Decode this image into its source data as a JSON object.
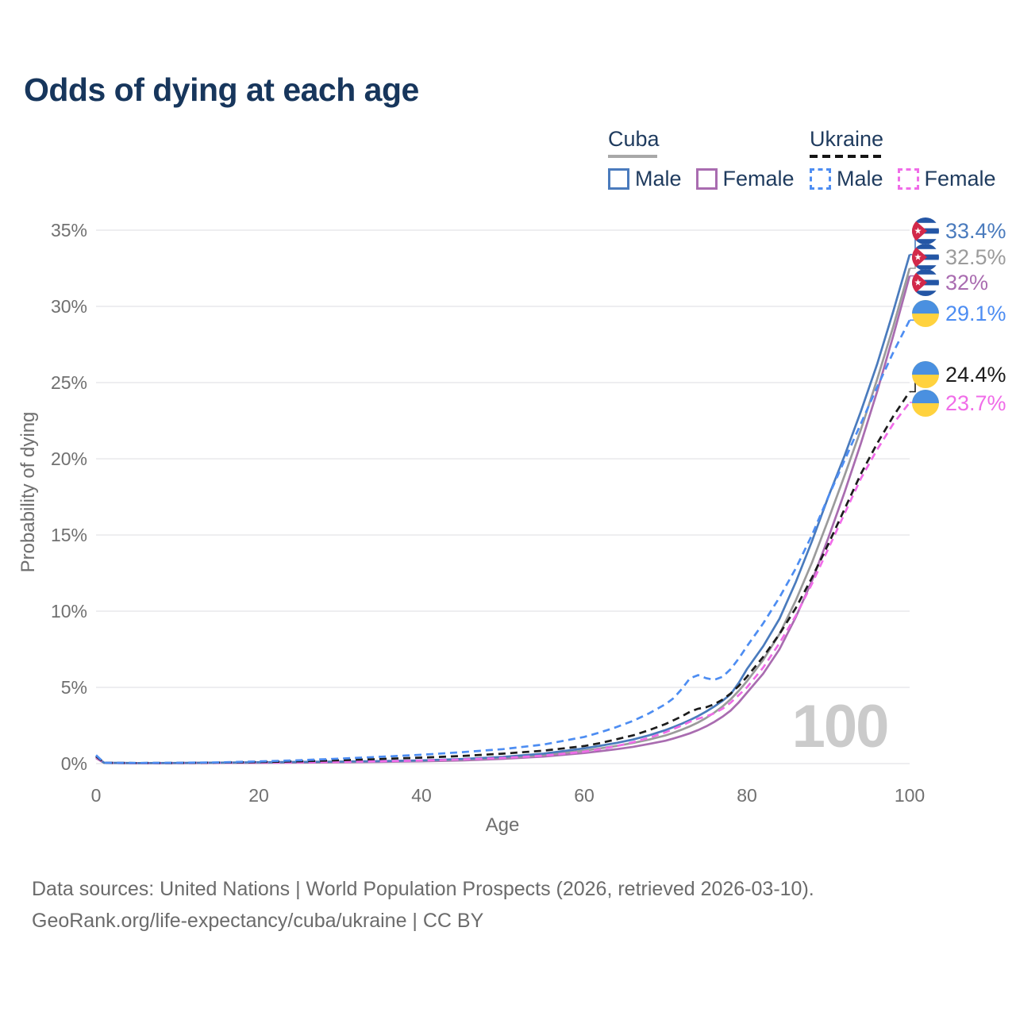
{
  "title": "Odds of dying at each age",
  "legend": {
    "groups": [
      {
        "label": "Cuba",
        "line_style": "solid",
        "items": [
          {
            "label": "Male",
            "color": "#4a7bbd"
          },
          {
            "label": "Female",
            "color": "#a96cb0"
          }
        ]
      },
      {
        "label": "Ukraine",
        "line_style": "dashed",
        "items": [
          {
            "label": "Male",
            "color": "#4d8df2"
          },
          {
            "label": "Female",
            "color": "#f06ce8"
          }
        ]
      }
    ]
  },
  "chart_data": {
    "type": "line",
    "title": "Odds of dying at each age",
    "xlabel": "Age",
    "ylabel": "Probability of dying",
    "xlim": [
      0,
      100
    ],
    "ylim": [
      0,
      35
    ],
    "grid": "horizontal",
    "legend_position": "top-right",
    "watermark": "100",
    "x_ticks": [
      {
        "value": 0,
        "label": "0"
      },
      {
        "value": 20,
        "label": "20"
      },
      {
        "value": 40,
        "label": "40"
      },
      {
        "value": 60,
        "label": "60"
      },
      {
        "value": 80,
        "label": "80"
      },
      {
        "value": 100,
        "label": "100"
      }
    ],
    "y_ticks": [
      {
        "value": 0,
        "label": "0%"
      },
      {
        "value": 5,
        "label": "5%"
      },
      {
        "value": 10,
        "label": "10%"
      },
      {
        "value": 15,
        "label": "15%"
      },
      {
        "value": 20,
        "label": "20%"
      },
      {
        "value": 25,
        "label": "25%"
      },
      {
        "value": 30,
        "label": "30%"
      },
      {
        "value": 35,
        "label": "35%"
      }
    ],
    "ages": [
      0,
      1,
      5,
      10,
      15,
      20,
      25,
      30,
      35,
      40,
      45,
      50,
      55,
      60,
      62,
      64,
      66,
      68,
      70,
      71,
      72,
      73,
      74,
      75,
      76,
      77,
      78,
      79,
      80,
      82,
      84,
      86,
      88,
      90,
      92,
      94,
      96,
      98,
      100
    ],
    "series": [
      {
        "name": "cuba-male",
        "country": "Cuba",
        "sex": "Male",
        "color": "#4a7bbd",
        "dash": "solid",
        "end_label": "33.4%",
        "end_value": 33.4,
        "values": [
          0.45,
          0.05,
          0.035,
          0.04,
          0.06,
          0.09,
          0.11,
          0.13,
          0.16,
          0.21,
          0.3,
          0.44,
          0.65,
          1.0,
          1.17,
          1.36,
          1.58,
          1.86,
          2.2,
          2.4,
          2.62,
          2.86,
          3.12,
          3.42,
          3.75,
          4.12,
          4.55,
          5.3,
          6.2,
          7.7,
          9.5,
          11.9,
          14.6,
          17.5,
          20.2,
          23.1,
          26.2,
          29.7,
          33.4
        ]
      },
      {
        "name": "cuba-combined",
        "country": "Cuba",
        "sex": "Both",
        "color": "#9b9b9b",
        "dash": "solid",
        "end_label": "32.5%",
        "end_value": 32.5,
        "values": [
          0.4,
          0.045,
          0.03,
          0.035,
          0.05,
          0.07,
          0.09,
          0.11,
          0.14,
          0.18,
          0.26,
          0.38,
          0.56,
          0.85,
          1.0,
          1.16,
          1.35,
          1.58,
          1.85,
          2.03,
          2.23,
          2.45,
          2.7,
          3.0,
          3.35,
          3.75,
          4.22,
          4.78,
          5.4,
          6.8,
          8.5,
          10.7,
          13.2,
          16.0,
          18.9,
          21.9,
          25.2,
          28.7,
          32.5
        ]
      },
      {
        "name": "cuba-female",
        "country": "Cuba",
        "sex": "Female",
        "color": "#a96cb0",
        "dash": "solid",
        "end_label": "32%",
        "end_value": 32,
        "values": [
          0.36,
          0.04,
          0.028,
          0.03,
          0.04,
          0.05,
          0.065,
          0.085,
          0.11,
          0.15,
          0.21,
          0.31,
          0.46,
          0.7,
          0.82,
          0.95,
          1.1,
          1.29,
          1.5,
          1.65,
          1.81,
          1.99,
          2.2,
          2.45,
          2.74,
          3.08,
          3.48,
          4.02,
          4.65,
          5.9,
          7.5,
          9.6,
          12.0,
          14.8,
          17.8,
          21.0,
          24.4,
          28.1,
          32.0
        ]
      },
      {
        "name": "ukraine-male",
        "country": "Ukraine",
        "sex": "Male",
        "color": "#4d8df2",
        "dash": "dashed",
        "end_label": "29.1%",
        "end_value": 29.1,
        "values": [
          0.55,
          0.05,
          0.04,
          0.05,
          0.08,
          0.14,
          0.22,
          0.33,
          0.45,
          0.58,
          0.75,
          0.95,
          1.25,
          1.75,
          2.05,
          2.4,
          2.8,
          3.3,
          3.9,
          4.3,
          4.9,
          5.6,
          5.8,
          5.6,
          5.5,
          5.7,
          6.2,
          6.9,
          7.7,
          9.2,
          10.9,
          12.8,
          15.0,
          17.5,
          19.9,
          22.3,
          24.7,
          27.0,
          29.1
        ]
      },
      {
        "name": "ukraine-combined",
        "country": "Ukraine",
        "sex": "Both",
        "color": "#1c1c1c",
        "dash": "dashed",
        "end_label": "24.4%",
        "end_value": 24.4,
        "values": [
          0.48,
          0.045,
          0.035,
          0.04,
          0.06,
          0.1,
          0.15,
          0.22,
          0.3,
          0.39,
          0.5,
          0.65,
          0.85,
          1.15,
          1.35,
          1.6,
          1.85,
          2.2,
          2.6,
          2.85,
          3.1,
          3.4,
          3.6,
          3.7,
          3.9,
          4.2,
          4.6,
          5.1,
          5.7,
          7.0,
          8.5,
          10.2,
          12.2,
          14.4,
          16.7,
          19.0,
          21.0,
          22.8,
          24.4
        ]
      },
      {
        "name": "ukraine-female",
        "country": "Ukraine",
        "sex": "Female",
        "color": "#f06ce8",
        "dash": "dashed",
        "end_label": "23.7%",
        "end_value": 23.7,
        "values": [
          0.42,
          0.04,
          0.03,
          0.035,
          0.045,
          0.06,
          0.08,
          0.11,
          0.15,
          0.2,
          0.27,
          0.37,
          0.52,
          0.78,
          0.95,
          1.15,
          1.4,
          1.7,
          2.05,
          2.28,
          2.5,
          2.75,
          2.95,
          3.1,
          3.3,
          3.6,
          4.0,
          4.5,
          5.0,
          6.3,
          7.9,
          9.7,
          11.8,
          14.1,
          16.4,
          18.7,
          20.6,
          22.3,
          23.7
        ]
      }
    ]
  },
  "footer": {
    "line1": "Data sources: United Nations | World Population Prospects (2026, retrieved 2026-03-10).",
    "line2": "GeoRank.org/life-expectancy/cuba/ukraine | CC BY"
  }
}
